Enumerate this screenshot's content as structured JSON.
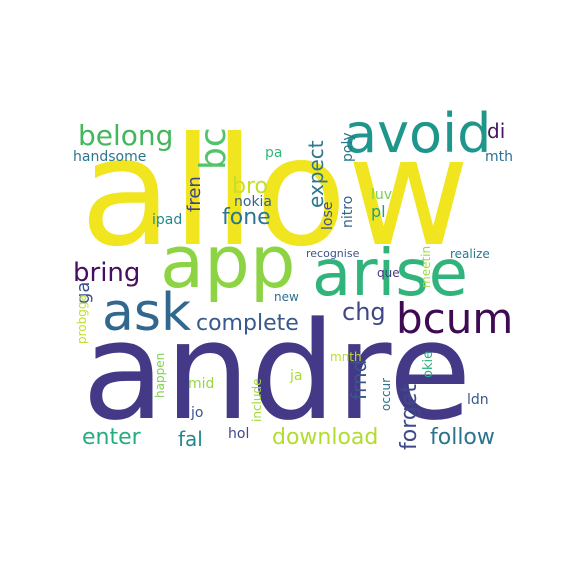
{
  "words": [
    {
      "text": "allow",
      "color": "#f0e51e"
    },
    {
      "text": "andre",
      "color": "#433986"
    },
    {
      "text": "app",
      "color": "#8cd444"
    },
    {
      "text": "arise",
      "color": "#30b47c"
    },
    {
      "text": "avoid",
      "color": "#1f968b"
    },
    {
      "text": "ask",
      "color": "#31688e"
    },
    {
      "text": "bcum",
      "color": "#3e0a54"
    },
    {
      "text": "belong",
      "color": "#44b75b"
    },
    {
      "text": "bc",
      "color": "#52c569"
    },
    {
      "text": "bring",
      "color": "#470f5f"
    },
    {
      "text": "complete",
      "color": "#38598c"
    },
    {
      "text": "bro",
      "color": "#c5de2b"
    },
    {
      "text": "fone",
      "color": "#2a768e"
    },
    {
      "text": "expect",
      "color": "#2b778e"
    },
    {
      "text": "chg",
      "color": "#3f4788"
    },
    {
      "text": "frnd",
      "color": "#39558c"
    },
    {
      "text": "forget",
      "color": "#3e4989"
    },
    {
      "text": "download",
      "color": "#b2dd2d"
    },
    {
      "text": "follow",
      "color": "#2c738e"
    },
    {
      "text": "enter",
      "color": "#25ad82"
    },
    {
      "text": "fal",
      "color": "#23888e"
    },
    {
      "text": "di",
      "color": "#471365"
    },
    {
      "text": "fren",
      "color": "#404387"
    },
    {
      "text": "handsome",
      "color": "#2a778e"
    },
    {
      "text": "poly",
      "color": "#2a778e"
    },
    {
      "text": "nitro",
      "color": "#31648e"
    },
    {
      "text": "mth",
      "color": "#2d708e"
    },
    {
      "text": "nokia",
      "color": "#31658e"
    },
    {
      "text": "pa",
      "color": "#35b779"
    },
    {
      "text": "ipad",
      "color": "#23898e"
    },
    {
      "text": "lose",
      "color": "#3a538b"
    },
    {
      "text": "luv",
      "color": "#7ad151"
    },
    {
      "text": "pl",
      "color": "#1f9e89"
    },
    {
      "text": "ga",
      "color": "#3b518b"
    },
    {
      "text": "probgga",
      "color": "#c2df23"
    },
    {
      "text": "recognise",
      "color": "#3b528b"
    },
    {
      "text": "realize",
      "color": "#2a788e"
    },
    {
      "text": "meetin",
      "color": "#9fda3a"
    },
    {
      "text": "que",
      "color": "#443983"
    },
    {
      "text": "new",
      "color": "#2c728e"
    },
    {
      "text": "mnth",
      "color": "#bddf26"
    },
    {
      "text": "okie",
      "color": "#26ad81"
    },
    {
      "text": "happen",
      "color": "#7cd250"
    },
    {
      "text": "mid",
      "color": "#95d840"
    },
    {
      "text": "ja",
      "color": "#a8db34"
    },
    {
      "text": "include",
      "color": "#a0da39"
    },
    {
      "text": "occur",
      "color": "#2d718e"
    },
    {
      "text": "ldn",
      "color": "#38598c"
    },
    {
      "text": "jo",
      "color": "#3b528b"
    },
    {
      "text": "hol",
      "color": "#3e4a89"
    }
  ]
}
